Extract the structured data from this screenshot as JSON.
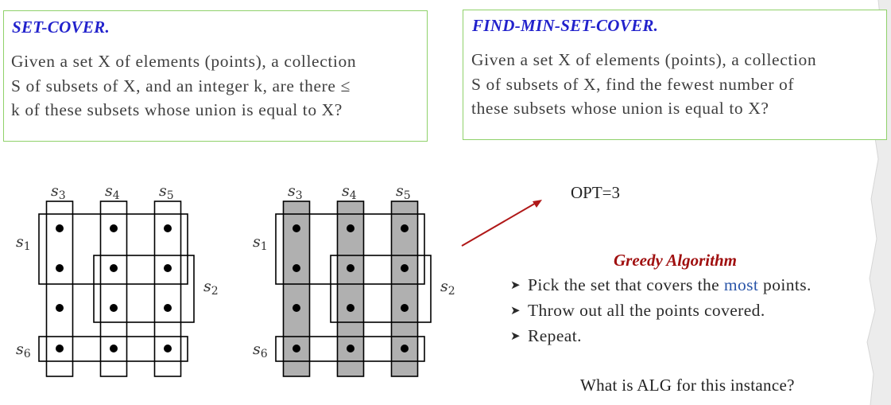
{
  "left_box": {
    "title": "SET-COVER.",
    "line1": "Given a set X of elements (points), a collection",
    "line2": "S of subsets of X, and an integer k, are there ≤",
    "line3": "k of these subsets whose union is equal to X?"
  },
  "right_box": {
    "title": "FIND-MIN-SET-COVER.",
    "line1": "Given a set X of elements (points), a collection",
    "line2": "S of subsets of X, find the fewest number of",
    "line3": "these subsets whose union is equal to X?"
  },
  "diagram_labels": {
    "s1": "s1",
    "s2": "s2",
    "s3": "s3",
    "s4": "s4",
    "s5": "s5",
    "s6": "s6"
  },
  "opt_label": "OPT=3",
  "greedy": {
    "title": "Greedy Algorithm",
    "item1_pre": "Pick the set that covers the ",
    "item1_emph": "most",
    "item1_post": " points.",
    "item2": "Throw out all the points covered.",
    "item3": "Repeat."
  },
  "question": "What is ALG for this instance?",
  "colors": {
    "box_border": "#8fd16a",
    "title_blue": "#2222cc",
    "greedy_red": "#a01010",
    "arrow_red": "#b01818",
    "highlight_gray": "#b0b0b0",
    "emphasis_blue": "#2a55a8"
  }
}
